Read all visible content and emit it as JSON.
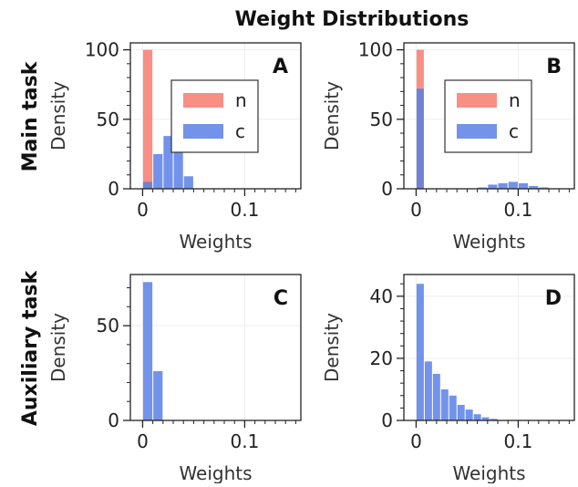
{
  "figure": {
    "title": "Weight Distributions",
    "row_labels": [
      "Main task",
      "Auxiliary task"
    ]
  },
  "colors": {
    "n": "#f87a70",
    "c": "#5b7fe6",
    "grid": "#eeeeee",
    "axis": "#222222"
  },
  "chart_data": [
    {
      "type": "bar",
      "panel": "A",
      "xlabel": "Weights",
      "ylabel": "Density",
      "xlim": [
        -0.012,
        0.155
      ],
      "ylim": [
        0,
        105
      ],
      "xticks": [
        0,
        0.1
      ],
      "xtick_labels": [
        "0",
        "0.1"
      ],
      "yticks": [
        0,
        50,
        100
      ],
      "legend": "inside-center",
      "series": [
        {
          "name": "n",
          "color": "#f87a70",
          "bins": [
            [
              0,
              0.01,
              100
            ]
          ]
        },
        {
          "name": "c",
          "color": "#5b7fe6",
          "bins": [
            [
              0,
              0.01,
              5
            ],
            [
              0.01,
              0.02,
              25
            ],
            [
              0.02,
              0.03,
              38
            ],
            [
              0.03,
              0.04,
              26
            ],
            [
              0.04,
              0.05,
              9
            ]
          ]
        }
      ]
    },
    {
      "type": "bar",
      "panel": "B",
      "xlabel": "Weights",
      "ylabel": "Density",
      "xlim": [
        -0.012,
        0.155
      ],
      "ylim": [
        0,
        105
      ],
      "xticks": [
        0,
        0.1
      ],
      "xtick_labels": [
        "0",
        "0.1"
      ],
      "yticks": [
        0,
        50,
        100
      ],
      "legend": "inside-center",
      "series": [
        {
          "name": "n",
          "color": "#f87a70",
          "bins": [
            [
              0,
              0.008,
              100
            ]
          ]
        },
        {
          "name": "c",
          "color": "#5b7fe6",
          "bins": [
            [
              0,
              0.008,
              72
            ],
            [
              0.06,
              0.07,
              1
            ],
            [
              0.07,
              0.08,
              3
            ],
            [
              0.08,
              0.09,
              4
            ],
            [
              0.09,
              0.1,
              5
            ],
            [
              0.1,
              0.11,
              4
            ],
            [
              0.11,
              0.12,
              2
            ],
            [
              0.12,
              0.13,
              1
            ]
          ]
        }
      ]
    },
    {
      "type": "bar",
      "panel": "C",
      "xlabel": "Weights",
      "ylabel": "Density",
      "xlim": [
        -0.012,
        0.155
      ],
      "ylim": [
        0,
        77
      ],
      "xticks": [
        0,
        0.1
      ],
      "xtick_labels": [
        "0",
        "0.1"
      ],
      "yticks": [
        0,
        50
      ],
      "legend": "none",
      "series": [
        {
          "name": "c",
          "color": "#5b7fe6",
          "bins": [
            [
              0,
              0.01,
              73
            ],
            [
              0.01,
              0.02,
              26
            ]
          ]
        }
      ]
    },
    {
      "type": "bar",
      "panel": "D",
      "xlabel": "Weights",
      "ylabel": "Density",
      "xlim": [
        -0.012,
        0.155
      ],
      "ylim": [
        0,
        47
      ],
      "xticks": [
        0,
        0.1
      ],
      "xtick_labels": [
        "0",
        "0.1"
      ],
      "yticks": [
        0,
        20,
        40
      ],
      "legend": "none",
      "series": [
        {
          "name": "c",
          "color": "#5b7fe6",
          "bins": [
            [
              0,
              0.008,
              44
            ],
            [
              0.008,
              0.016,
              19
            ],
            [
              0.016,
              0.024,
              15
            ],
            [
              0.024,
              0.032,
              10
            ],
            [
              0.032,
              0.04,
              8
            ],
            [
              0.04,
              0.048,
              5
            ],
            [
              0.048,
              0.056,
              3.5
            ],
            [
              0.056,
              0.064,
              2
            ],
            [
              0.064,
              0.072,
              1
            ],
            [
              0.072,
              0.08,
              0.5
            ]
          ]
        }
      ]
    }
  ]
}
